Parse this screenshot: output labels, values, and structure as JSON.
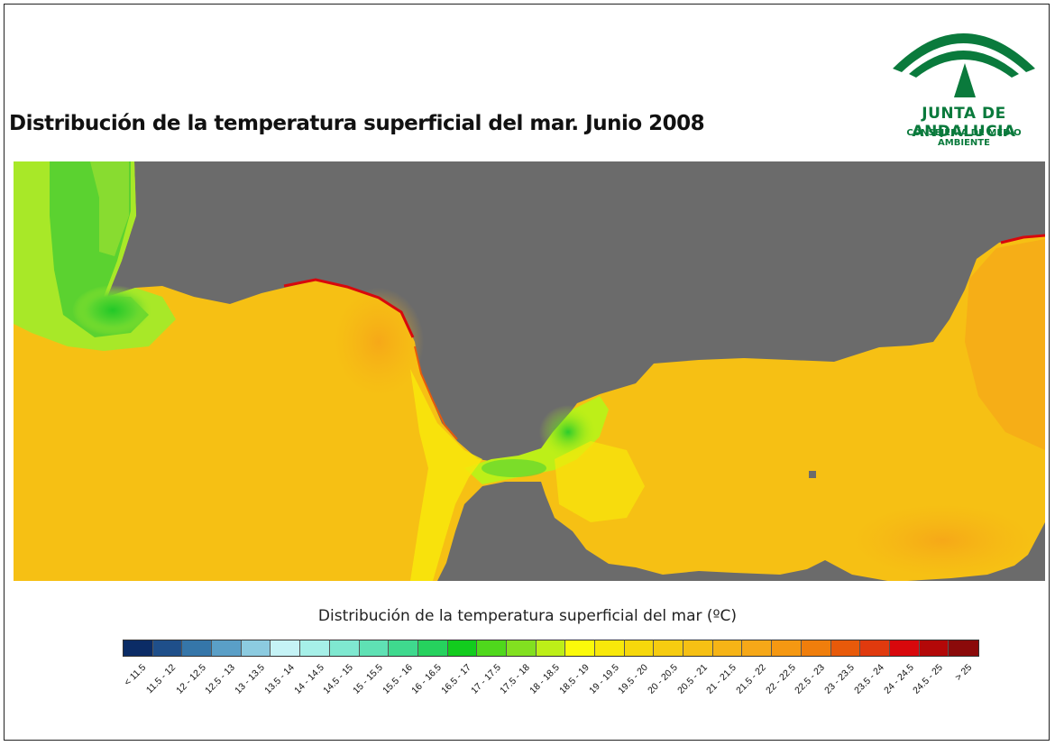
{
  "title": "Distribución de la temperatura superficial del mar. Junio 2008",
  "logo": {
    "name": "JUNTA DE ANDALUCIA",
    "subtitle": "CONSEJERÍA DE MEDIO AMBIENTE",
    "color": "#0a7a3c"
  },
  "map": {
    "land_color": "#6b6b6b"
  },
  "legend": {
    "title": "Distribución de la temperatura superficial del mar (ºC)",
    "classes": [
      {
        "label": "< 11.5",
        "color": "#0b2c66"
      },
      {
        "label": "11.5 - 12",
        "color": "#1f4f8a"
      },
      {
        "label": "12 - 12.5",
        "color": "#3576a9"
      },
      {
        "label": "12.5 - 13",
        "color": "#5a9fc7"
      },
      {
        "label": "13 - 13.5",
        "color": "#8ccbe0"
      },
      {
        "label": "13.5 - 14",
        "color": "#c5f3f6"
      },
      {
        "label": "14 - 14.5",
        "color": "#a6f0e8"
      },
      {
        "label": "14.5 - 15",
        "color": "#7fe8d0"
      },
      {
        "label": "15 - 15.5",
        "color": "#5fe1b4"
      },
      {
        "label": "15.5 - 16",
        "color": "#3fd98e"
      },
      {
        "label": "16 - 16.5",
        "color": "#26d25e"
      },
      {
        "label": "16.5 - 17",
        "color": "#12cc1e"
      },
      {
        "label": "17 - 17.5",
        "color": "#4fd81c"
      },
      {
        "label": "17.5 - 18",
        "color": "#82e020"
      },
      {
        "label": "18 - 18.5",
        "color": "#bdef18"
      },
      {
        "label": "18.5 - 19",
        "color": "#fbfa0a"
      },
      {
        "label": "19 - 19.5",
        "color": "#f8e80a"
      },
      {
        "label": "19.5 - 20",
        "color": "#f6d80c"
      },
      {
        "label": "20 - 20.5",
        "color": "#f6cc10"
      },
      {
        "label": "20.5 - 21",
        "color": "#f6c014"
      },
      {
        "label": "21 - 21.5",
        "color": "#f6b416"
      },
      {
        "label": "21.5 - 22",
        "color": "#f6a818"
      },
      {
        "label": "22 - 22.5",
        "color": "#f59812"
      },
      {
        "label": "22.5 - 23",
        "color": "#f07e0c"
      },
      {
        "label": "23 - 23.5",
        "color": "#e85a0a"
      },
      {
        "label": "23.5 - 24",
        "color": "#e03a0e"
      },
      {
        "label": "24 - 24.5",
        "color": "#d8080c"
      },
      {
        "label": "24.5 - 25",
        "color": "#b30808"
      },
      {
        "label": "> 25",
        "color": "#8b0a0a"
      }
    ]
  }
}
